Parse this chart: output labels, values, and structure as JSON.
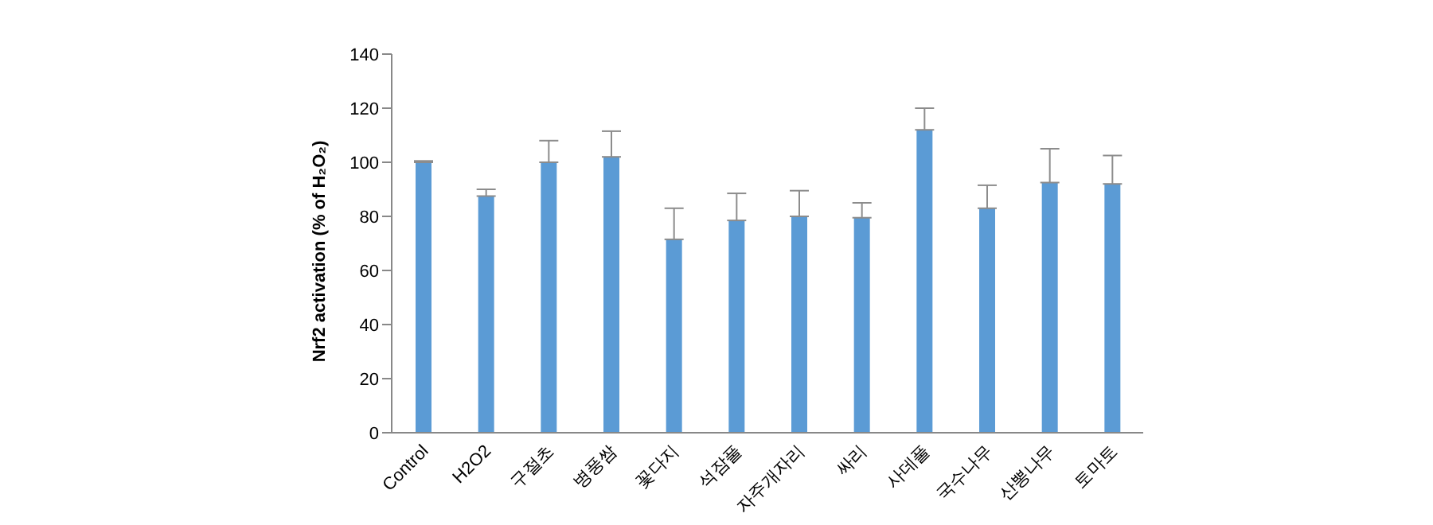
{
  "chart_data": {
    "type": "bar",
    "ylabel": "Nrf2 activation (% of H₂O₂)",
    "categories": [
      "Control",
      "H2O2",
      "구절초",
      "병풍쌈",
      "꽃다지",
      "석잠풀",
      "자주개자리",
      "싸리",
      "사데풀",
      "국수나무",
      "산뽕나무",
      "토마토"
    ],
    "values": [
      100,
      87.5,
      100,
      102,
      71.5,
      78.5,
      80,
      79.5,
      112,
      83,
      92.5,
      92
    ],
    "errors": [
      [
        100,
        100.5
      ],
      [
        87.5,
        90
      ],
      [
        100,
        108
      ],
      [
        102,
        111.5
      ],
      [
        71.5,
        83
      ],
      [
        78.5,
        88.5
      ],
      [
        80,
        89.5
      ],
      [
        79.5,
        85
      ],
      [
        112,
        120
      ],
      [
        83,
        91.5
      ],
      [
        92.5,
        105
      ],
      [
        92,
        102.5
      ]
    ],
    "color": "#5b9bd5",
    "ylim": [
      0,
      140
    ],
    "yticks": [
      0,
      20,
      40,
      60,
      80,
      100,
      120,
      140
    ],
    "grid": false,
    "legend": false
  }
}
